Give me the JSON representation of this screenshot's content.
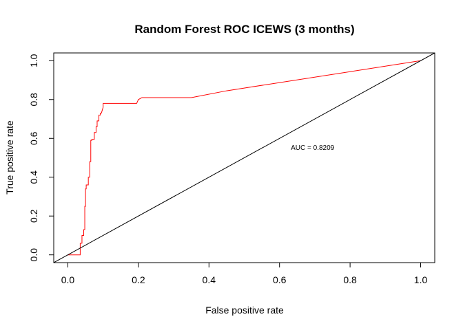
{
  "chart_data": {
    "type": "line",
    "title": "Random Forest ROC ICEWS (3 months)",
    "xlabel": "False positive rate",
    "ylabel": "True positive rate",
    "xlim": [
      -0.04,
      1.04
    ],
    "ylim": [
      -0.04,
      1.04
    ],
    "x_ticks": [
      "0.0",
      "0.2",
      "0.4",
      "0.6",
      "0.8",
      "1.0"
    ],
    "y_ticks": [
      "0.0",
      "0.2",
      "0.4",
      "0.6",
      "0.8",
      "1.0"
    ],
    "grid": false,
    "annotation": {
      "text": "AUC  = 0.8209",
      "x": 0.72,
      "y": 0.555
    },
    "series": [
      {
        "color": "#ff0000",
        "x": [
          0.0,
          0.035,
          0.035,
          0.04,
          0.04,
          0.045,
          0.045,
          0.048,
          0.048,
          0.05,
          0.05,
          0.052,
          0.052,
          0.058,
          0.058,
          0.062,
          0.062,
          0.065,
          0.065,
          0.068,
          0.068,
          0.075,
          0.075,
          0.08,
          0.08,
          0.083,
          0.083,
          0.088,
          0.088,
          0.092,
          0.092,
          0.095,
          0.1,
          0.1,
          0.195,
          0.2,
          0.21,
          0.35,
          0.45,
          1.0
        ],
        "y": [
          0.0,
          0.0,
          0.06,
          0.06,
          0.1,
          0.1,
          0.13,
          0.13,
          0.25,
          0.25,
          0.34,
          0.34,
          0.36,
          0.36,
          0.4,
          0.4,
          0.48,
          0.48,
          0.59,
          0.59,
          0.595,
          0.595,
          0.63,
          0.63,
          0.66,
          0.66,
          0.69,
          0.69,
          0.72,
          0.72,
          0.73,
          0.73,
          0.76,
          0.78,
          0.78,
          0.8,
          0.81,
          0.81,
          0.845,
          1.0
        ]
      },
      {
        "color": "#000000",
        "x": [
          -0.04,
          1.04
        ],
        "y": [
          -0.04,
          1.04
        ]
      }
    ]
  }
}
